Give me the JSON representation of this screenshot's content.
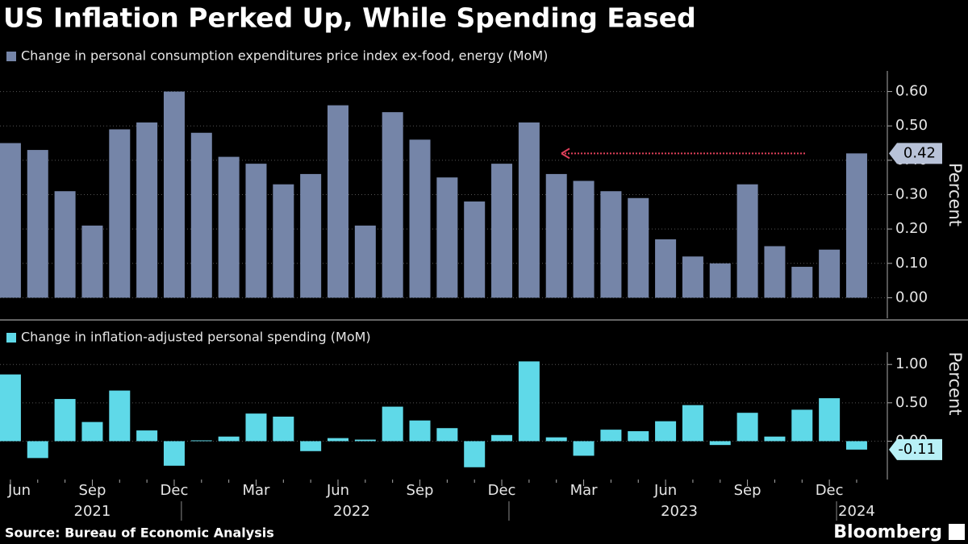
{
  "title": "US Inflation Perked Up, While Spending Eased",
  "source": "Source: Bureau of Economic Analysis",
  "brand": "Bloomberg",
  "chart_data": [
    {
      "type": "bar",
      "legend": "Change in personal consumption expenditures price index ex-food, energy (MoM)",
      "y_label": "Percent",
      "color": "#7585a8",
      "values": [
        0.45,
        0.43,
        0.31,
        0.21,
        0.49,
        0.51,
        0.6,
        0.48,
        0.41,
        0.39,
        0.33,
        0.36,
        0.56,
        0.21,
        0.54,
        0.46,
        0.35,
        0.28,
        0.39,
        0.51,
        0.36,
        0.34,
        0.31,
        0.29,
        0.17,
        0.12,
        0.1,
        0.33,
        0.15,
        0.09,
        0.14,
        0.42
      ],
      "ylim": [
        -0.06,
        0.66
      ],
      "yticks": [
        {
          "value": 0,
          "label": "0.00"
        },
        {
          "value": 0.1,
          "label": "0.10"
        },
        {
          "value": 0.2,
          "label": "0.20"
        },
        {
          "value": 0.3,
          "label": "0.30"
        },
        {
          "value": 0.4,
          "label": "0.40"
        },
        {
          "value": 0.5,
          "label": "0.50"
        },
        {
          "value": 0.6,
          "label": "0.60"
        }
      ],
      "grid": true
    },
    {
      "type": "bar",
      "legend": "Change in inflation-adjusted personal spending (MoM)",
      "y_label": "Percent",
      "color": "#5fd9e8",
      "values": [
        0.87,
        -0.22,
        0.55,
        0.25,
        0.66,
        0.14,
        -0.32,
        0.01,
        0.06,
        0.36,
        0.32,
        -0.13,
        0.04,
        0.02,
        0.45,
        0.27,
        0.17,
        -0.34,
        0.08,
        1.04,
        0.05,
        -0.19,
        0.15,
        0.13,
        0.26,
        0.47,
        -0.05,
        0.37,
        0.06,
        0.41,
        0.56,
        -0.11
      ],
      "ylim": [
        -0.5,
        1.16
      ],
      "yticks": [
        {
          "value": 0,
          "label": "0.00"
        },
        {
          "value": 0.5,
          "label": "0.50"
        },
        {
          "value": 1,
          "label": "1.00"
        }
      ],
      "grid": true,
      "categories": [
        "Jun",
        null,
        null,
        "Sep",
        null,
        null,
        "Dec",
        null,
        null,
        "Mar",
        null,
        null,
        "Jun",
        null,
        null,
        "Sep",
        null,
        null,
        "Dec",
        null,
        null,
        "Mar",
        null,
        null,
        "Jun",
        null,
        null,
        "Sep",
        null,
        null,
        "Dec",
        null
      ],
      "x_groups": [
        {
          "label": "2021",
          "count": 7
        },
        {
          "label": "2022",
          "count": 12
        },
        {
          "label": "2023",
          "count": 12
        },
        {
          "label": "2024",
          "count": 1
        }
      ]
    }
  ]
}
